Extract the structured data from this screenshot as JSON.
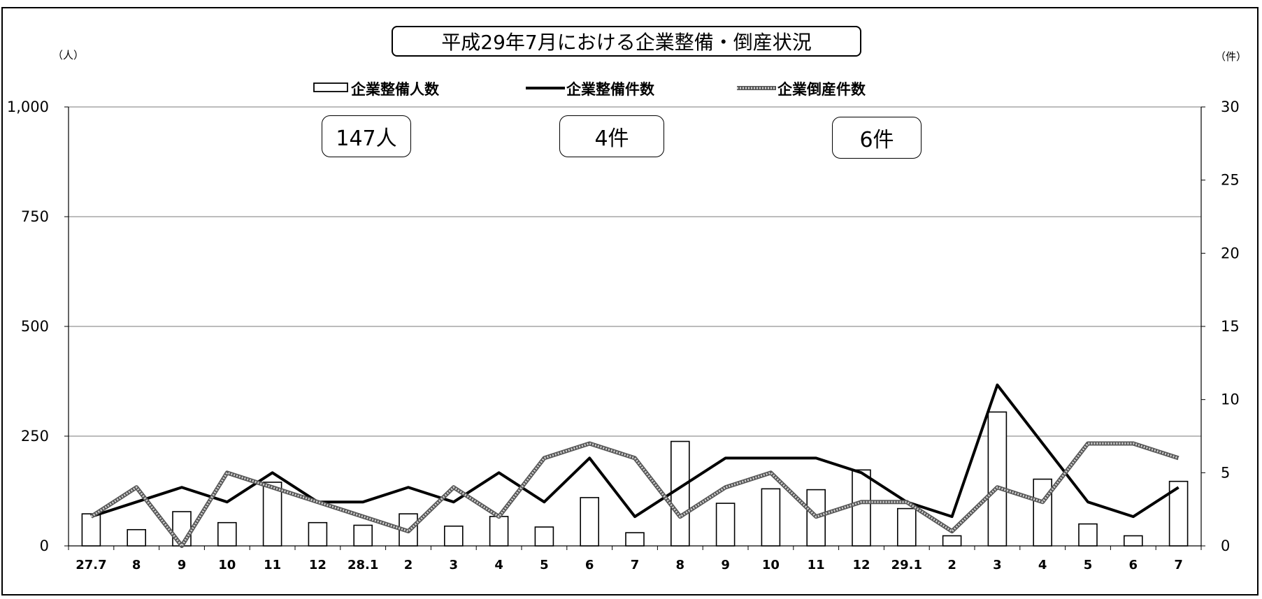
{
  "chart_data": {
    "type": "bar+line",
    "title": "平成29年7月における企業整備・倒産状況",
    "left_unit": "（人）",
    "right_unit": "（件）",
    "categories": [
      "27.7",
      "8",
      "9",
      "10",
      "11",
      "12",
      "28.1",
      "2",
      "3",
      "4",
      "5",
      "6",
      "7",
      "8",
      "9",
      "10",
      "11",
      "12",
      "29.1",
      "2",
      "3",
      "4",
      "5",
      "6",
      "7"
    ],
    "left_axis": {
      "ylim": [
        0,
        1000
      ],
      "ticks": [
        "0",
        "250",
        "500",
        "750",
        "1,000"
      ],
      "tick_values": [
        0,
        250,
        500,
        750,
        1000
      ]
    },
    "right_axis": {
      "ylim": [
        0,
        30
      ],
      "ticks": [
        "0",
        "5",
        "10",
        "15",
        "20",
        "25",
        "30"
      ],
      "tick_values": [
        0,
        5,
        10,
        15,
        20,
        25,
        30
      ]
    },
    "grid": true,
    "legend_position": "top",
    "series": [
      {
        "name": "企業整備人数",
        "type": "bar",
        "axis": "left",
        "values": [
          73,
          37,
          78,
          53,
          145,
          53,
          47,
          73,
          45,
          67,
          43,
          110,
          30,
          238,
          97,
          130,
          128,
          173,
          85,
          23,
          305,
          152,
          50,
          23,
          147
        ]
      },
      {
        "name": "企業整備件数",
        "type": "line",
        "axis": "right",
        "color": "#000000",
        "values": [
          2,
          3,
          4,
          3,
          5,
          3,
          3,
          4,
          3,
          5,
          3,
          6,
          2,
          4,
          6,
          6,
          6,
          5,
          3,
          2,
          11,
          7,
          3,
          2,
          4
        ]
      },
      {
        "name": "企業倒産件数",
        "type": "line",
        "axis": "right",
        "color": "#999999",
        "values": [
          2,
          4,
          0,
          5,
          4,
          3,
          2,
          1,
          4,
          2,
          6,
          7,
          6,
          2,
          4,
          5,
          2,
          3,
          3,
          1,
          4,
          3,
          7,
          7,
          6
        ]
      }
    ],
    "callouts": [
      "147人",
      "4件",
      "6件"
    ]
  }
}
